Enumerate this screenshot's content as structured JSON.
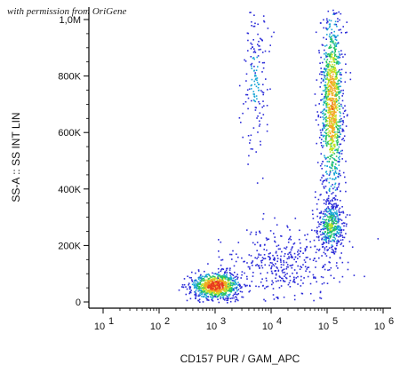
{
  "credit": "with permission from OriGene",
  "chart_data": {
    "type": "scatter",
    "subtype": "flow cytometry dot plot (density colored)",
    "xlabel": "CD157 PUR / GAM_APC",
    "ylabel": "SS-A :: SS INT LIN",
    "x_scale": "log",
    "xlim": [
      10,
      1000000
    ],
    "ylim": [
      0,
      1050000
    ],
    "x_ticks": [
      {
        "value": 10,
        "base": "10",
        "exp": "1"
      },
      {
        "value": 100,
        "base": "10",
        "exp": "2"
      },
      {
        "value": 1000,
        "base": "10",
        "exp": "3"
      },
      {
        "value": 10000,
        "base": "10",
        "exp": "4"
      },
      {
        "value": 100000,
        "base": "10",
        "exp": "5"
      },
      {
        "value": 1000000,
        "base": "10",
        "exp": "6"
      }
    ],
    "y_ticks": [
      {
        "value": 0,
        "label": "0"
      },
      {
        "value": 200000,
        "label": "200K"
      },
      {
        "value": 400000,
        "label": "400K"
      },
      {
        "value": 600000,
        "label": "600K"
      },
      {
        "value": 800000,
        "label": "800K"
      },
      {
        "value": 1000000,
        "label": "1,0M"
      }
    ],
    "grid": false,
    "density_colors": [
      "#2b2bd8",
      "#1aa6d6",
      "#27c462",
      "#c6e52a",
      "#f5a623",
      "#e83a1e"
    ],
    "populations": [
      {
        "name": "",
        "center_x_log": 3.0,
        "center_y": 60000,
        "spread_x_log": 0.22,
        "spread_y": 25000,
        "peak_density": 1.0
      },
      {
        "name": "",
        "center_x_log": 5.08,
        "center_y": 700000,
        "spread_x_log": 0.1,
        "spread_y": 180000,
        "peak_density": 0.8
      },
      {
        "name": "",
        "center_x_log": 5.05,
        "center_y": 270000,
        "spread_x_log": 0.12,
        "spread_y": 45000,
        "peak_density": 0.5
      },
      {
        "name": "",
        "center_x_log": 3.7,
        "center_y": 790000,
        "spread_x_log": 0.12,
        "spread_y": 140000,
        "peak_density": 0.2
      },
      {
        "name": "",
        "center_x_log": 4.2,
        "center_y": 140000,
        "spread_x_log": 0.5,
        "spread_y": 60000,
        "peak_density": 0.15
      }
    ]
  }
}
